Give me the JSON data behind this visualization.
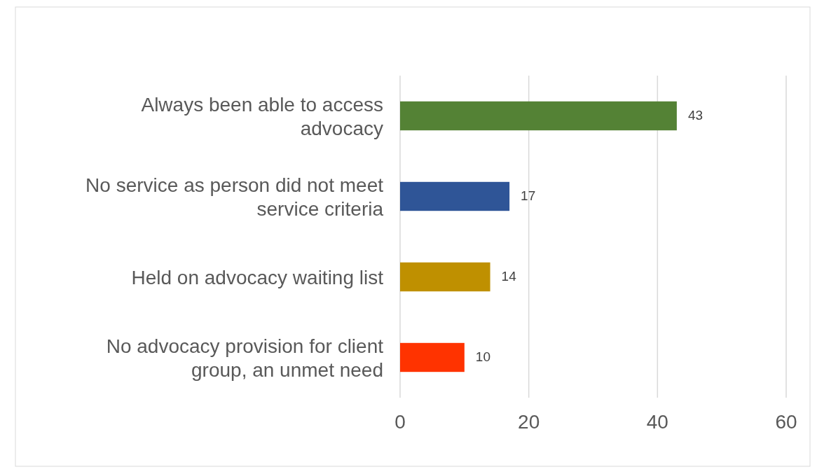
{
  "chart_data": {
    "type": "bar",
    "orientation": "horizontal",
    "categories": [
      "Always been able to access advocacy",
      "No service as person did not meet service criteria",
      "Held on advocacy waiting list",
      "No advocacy provision for client group, an unmet need"
    ],
    "values": [
      43,
      17,
      14,
      10
    ],
    "colors": [
      "#548235",
      "#2f5597",
      "#bf9000",
      "#ff3300"
    ],
    "xlim": [
      0,
      60
    ],
    "xticks": [
      0,
      20,
      40,
      60
    ],
    "grid": "x",
    "data_labels": true
  }
}
